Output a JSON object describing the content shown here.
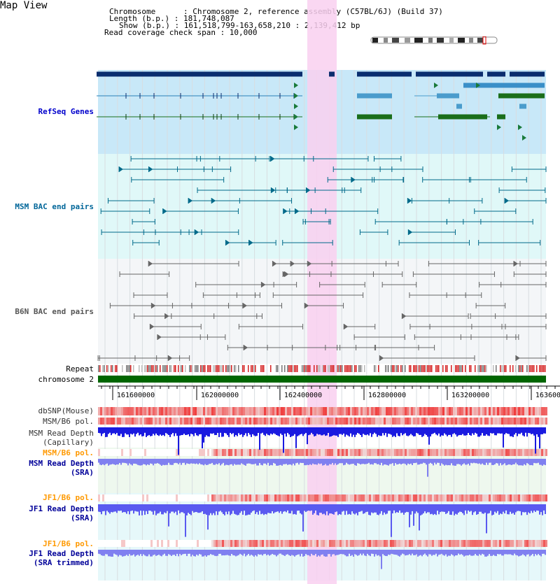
{
  "page": {
    "title": "Map View"
  },
  "header": {
    "line1": "Chromosome      : Chromosome 2, reference assembly (C57BL/6J) (Build 37)",
    "line2": "Length (b.p.) : 181,748,087",
    "line3": "Show (b.p.) : 161,518,799-163,658,210 : 2,139,412 bp",
    "line4": "Read coverage check span : 10,000"
  },
  "tracks": {
    "refseq": "RefSeq Genes",
    "msm_bac": "MSM BAC end pairs",
    "b6n_bac": "B6N BAC end pairs",
    "repeat": "Repeat",
    "chromosome": "chromosome 2",
    "dbsnp": "dbSNP(Mouse)",
    "msm_b6_pol_1": "MSM/B6 pol.",
    "msm_depth_cap_1": "MSM Read Depth",
    "msm_depth_cap_2": "(Capillary)",
    "msm_b6_pol_2": "MSM/B6 pol.",
    "msm_depth_sra_1": "MSM Read Depth",
    "msm_depth_sra_2": "(SRA)",
    "jf1_b6_pol_1": "JF1/B6 pol.",
    "jf1_depth_sra_1": "JF1 Read Depth",
    "jf1_depth_sra_2": "(SRA)",
    "jf1_b6_pol_2": "JF1/B6 pol.",
    "jf1_depth_trim_1": "JF1 Read Depth",
    "jf1_depth_trim_2": "(SRA trimmed)"
  },
  "axis": {
    "ticks": [
      "161600000",
      "162000000",
      "162400000",
      "162800000",
      "163200000",
      "163600000"
    ]
  },
  "colors": {
    "refseq_label": "#0000cc",
    "msm_label": "#006699",
    "b6n_label": "#555555",
    "pol_label": "#ff9900",
    "depth_label": "#000099",
    "highlight": "#f9d0f0",
    "refseq_bg": "#c8e8f8",
    "msm_bg": "#e0f8f8",
    "b6n_bg": "#f4f6f8",
    "chromosome": "#006600"
  }
}
